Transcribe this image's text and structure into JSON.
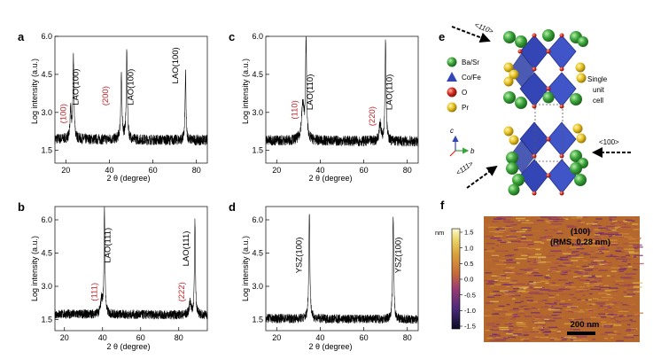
{
  "chart_data": [
    {
      "id": "a",
      "panel_label": "a",
      "type": "line",
      "xlabel": "2 θ (degree)",
      "ylabel": "Log intensity (a.u.)",
      "xlim": [
        15,
        85
      ],
      "ylim": [
        1.0,
        6.0
      ],
      "xticks": [
        "20",
        "40",
        "60",
        "80"
      ],
      "xtick_values": [
        20,
        40,
        60,
        80
      ],
      "yticks": [
        "1.5",
        "3.0",
        "4.5",
        "6.0"
      ],
      "ytick_values": [
        1.5,
        3.0,
        4.5,
        6.0
      ],
      "baseline": 1.95,
      "peaks": [
        {
          "x": 22.2,
          "y": 3.05,
          "w": 0.35
        },
        {
          "x": 23.5,
          "y": 5.1,
          "w": 0.3
        },
        {
          "x": 45.5,
          "y": 4.4,
          "w": 0.35
        },
        {
          "x": 48.0,
          "y": 5.35,
          "w": 0.3
        },
        {
          "x": 75.0,
          "y": 4.6,
          "w": 0.25
        }
      ],
      "annotations": [
        {
          "text": "(100)",
          "x": 20.0,
          "y": 2.95,
          "color": "#c0282d"
        },
        {
          "text": "LAO(100)",
          "x": 25.8,
          "y": 4.0,
          "color": "#000000"
        },
        {
          "text": "(200)",
          "x": 39.5,
          "y": 3.65,
          "color": "#c0282d"
        },
        {
          "text": "LAO(100)",
          "x": 51.0,
          "y": 4.0,
          "color": "#000000"
        },
        {
          "text": "LAO(100)",
          "x": 71.5,
          "y": 4.85,
          "color": "#000000"
        }
      ]
    },
    {
      "id": "b",
      "panel_label": "b",
      "type": "line",
      "xlabel": "2 θ (degree)",
      "ylabel": "Log intensity (a.u.)",
      "xlim": [
        15,
        95
      ],
      "ylim": [
        1.0,
        6.6
      ],
      "xticks": [
        "20",
        "40",
        "60",
        "80"
      ],
      "xtick_values": [
        20,
        40,
        60,
        80
      ],
      "yticks": [
        "1.5",
        "3.0",
        "4.5",
        "6.0"
      ],
      "ytick_values": [
        1.5,
        3.0,
        4.5,
        6.0
      ],
      "baseline": 1.75,
      "peaks": [
        {
          "x": 39.5,
          "y": 2.4,
          "w": 0.6
        },
        {
          "x": 41.0,
          "y": 6.4,
          "w": 0.3
        },
        {
          "x": 86.0,
          "y": 2.3,
          "w": 0.6
        },
        {
          "x": 88.5,
          "y": 6.0,
          "w": 0.3
        }
      ],
      "annotations": [
        {
          "text": "(111)",
          "x": 37.0,
          "y": 2.75,
          "color": "#c0282d"
        },
        {
          "text": "LAO(111)",
          "x": 44.0,
          "y": 4.85,
          "color": "#000000"
        },
        {
          "text": "(222)",
          "x": 83.0,
          "y": 2.75,
          "color": "#c0282d"
        },
        {
          "text": "LAO(111)",
          "x": 85.2,
          "y": 4.7,
          "color": "#000000"
        }
      ]
    },
    {
      "id": "c",
      "panel_label": "c",
      "type": "line",
      "xlabel": "2 θ (degree)",
      "ylabel": "Log intensity (a.u.)",
      "xlim": [
        15,
        85
      ],
      "ylim": [
        1.0,
        6.0
      ],
      "xticks": [
        "20",
        "40",
        "60",
        "80"
      ],
      "xtick_values": [
        20,
        40,
        60,
        80
      ],
      "yticks": [
        "1.5",
        "3.0",
        "4.5",
        "6.0"
      ],
      "ytick_values": [
        1.5,
        3.0,
        4.5,
        6.0
      ],
      "baseline": 1.9,
      "peaks": [
        {
          "x": 32.0,
          "y": 3.3,
          "w": 0.7
        },
        {
          "x": 33.5,
          "y": 5.75,
          "w": 0.3
        },
        {
          "x": 67.5,
          "y": 2.6,
          "w": 0.5
        },
        {
          "x": 70.0,
          "y": 5.9,
          "w": 0.3
        }
      ],
      "annotations": [
        {
          "text": "(110)",
          "x": 29.5,
          "y": 3.1,
          "color": "#c0282d"
        },
        {
          "text": "LAO(110)",
          "x": 36.5,
          "y": 3.8,
          "color": "#000000"
        },
        {
          "text": "(220)",
          "x": 65.0,
          "y": 2.85,
          "color": "#c0282d"
        },
        {
          "text": "LAO(110)",
          "x": 73.0,
          "y": 3.8,
          "color": "#000000"
        }
      ]
    },
    {
      "id": "d",
      "panel_label": "d",
      "type": "line",
      "xlabel": "2 θ (degree)",
      "ylabel": "Log intensity (a.u.)",
      "xlim": [
        15,
        85
      ],
      "ylim": [
        1.0,
        6.6
      ],
      "xticks": [
        "20",
        "40",
        "60",
        "80"
      ],
      "xtick_values": [
        20,
        40,
        60,
        80
      ],
      "yticks": [
        "1.5",
        "3.0",
        "4.5",
        "6.0"
      ],
      "ytick_values": [
        1.5,
        3.0,
        4.5,
        6.0
      ],
      "baseline": 1.55,
      "peaks": [
        {
          "x": 35.0,
          "y": 6.3,
          "w": 0.3
        },
        {
          "x": 73.5,
          "y": 6.2,
          "w": 0.3
        }
      ],
      "annotations": [
        {
          "text": "YSZ(100)",
          "x": 31.5,
          "y": 4.4,
          "color": "#000000"
        },
        {
          "text": "YSZ(100)",
          "x": 77.0,
          "y": 4.4,
          "color": "#000000"
        }
      ]
    }
  ],
  "structure_panel": {
    "panel_label": "e",
    "legend": [
      {
        "label": "Ba/Sr",
        "symbol": "sphere",
        "color": "#3aa33a"
      },
      {
        "label": "Co/Fe",
        "symbol": "triangle",
        "color": "#3446b5"
      },
      {
        "label": "O",
        "symbol": "sphere",
        "color": "#d42a1e"
      },
      {
        "label": "Pr",
        "symbol": "sphere",
        "color": "#e6c21f"
      }
    ],
    "directions": [
      "<110>",
      "<100>",
      "<111>"
    ],
    "unit_cell_label_lines": [
      "Single",
      "unit",
      "cell"
    ],
    "axis_labels": [
      "c",
      "b"
    ]
  },
  "afm_panel": {
    "panel_label": "f",
    "unit": "nm",
    "colorbar_ticks": [
      "1.5",
      "1.0",
      "0.5",
      "0.0",
      "-0.5",
      "-1.0",
      "-1.5"
    ],
    "title_lines": [
      "(100)",
      "(RMS, 0.28 nm)"
    ],
    "scale_bar": "200 nm",
    "rms_nm": 0.28
  }
}
